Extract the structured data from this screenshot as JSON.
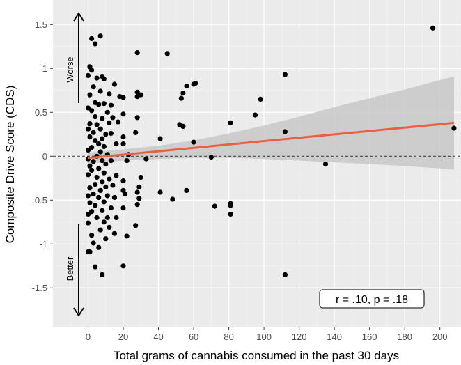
{
  "chart_data": {
    "type": "scatter",
    "title": "",
    "xlabel": "Total grams of cannabis consumed in the past 30 days",
    "ylabel": "Composite Drive Score (CDS)",
    "xlim": [
      -20,
      212
    ],
    "ylim": [
      -1.95,
      1.78
    ],
    "x_ticks": [
      0,
      20,
      40,
      60,
      80,
      100,
      120,
      140,
      160,
      180,
      200
    ],
    "x_tick_labels": [
      "0",
      "20",
      "40",
      "60",
      "80",
      "100",
      "120",
      "140",
      "160",
      "180",
      "200"
    ],
    "y_ticks": [
      -1.5,
      -1,
      -0.5,
      0,
      0.5,
      1,
      1.5
    ],
    "y_tick_labels": [
      "-1.5",
      "-1",
      "-0.5",
      "0",
      "0.5",
      "1",
      "1.5"
    ],
    "grid": true,
    "background_color": "#ebebeb",
    "point_color": "#000000",
    "fit_line_color": "#e8603f",
    "ribbon_color": "#c8c8c8",
    "reference_line_y": 0,
    "annotations": {
      "worse_label": "Worse",
      "better_label": "Better",
      "stat_label": "r = .10, p = .18"
    },
    "fit_line": {
      "x": [
        0,
        208
      ],
      "y": [
        -0.02,
        0.38
      ]
    },
    "ribbon": {
      "x": [
        0,
        20,
        40,
        60,
        80,
        100,
        120,
        140,
        160,
        180,
        208
      ],
      "lower": [
        -0.08,
        -0.05,
        -0.03,
        -0.02,
        -0.02,
        -0.03,
        -0.05,
        -0.07,
        -0.09,
        -0.11,
        -0.15
      ],
      "upper": [
        0.04,
        0.08,
        0.12,
        0.18,
        0.26,
        0.35,
        0.45,
        0.56,
        0.66,
        0.76,
        0.91
      ]
    },
    "points": [
      {
        "x": 196,
        "y": 1.46
      },
      {
        "x": 208,
        "y": 0.32
      },
      {
        "x": 112,
        "y": 0.93
      },
      {
        "x": 112,
        "y": 0.28
      },
      {
        "x": 112,
        "y": -1.35
      },
      {
        "x": 135,
        "y": -0.09
      },
      {
        "x": 98,
        "y": 0.65
      },
      {
        "x": 95,
        "y": 0.47
      },
      {
        "x": 81,
        "y": 0.38
      },
      {
        "x": 81,
        "y": -0.54
      },
      {
        "x": 81,
        "y": -0.56
      },
      {
        "x": 81,
        "y": -0.66
      },
      {
        "x": 72,
        "y": -0.57
      },
      {
        "x": 70,
        "y": -0.01
      },
      {
        "x": 61,
        "y": 0.83
      },
      {
        "x": 60,
        "y": 0.82
      },
      {
        "x": 60,
        "y": 0.16
      },
      {
        "x": 56,
        "y": 0.8
      },
      {
        "x": 54,
        "y": 0.72
      },
      {
        "x": 53,
        "y": 0.66
      },
      {
        "x": 52,
        "y": 0.36
      },
      {
        "x": 54,
        "y": 0.34
      },
      {
        "x": 56,
        "y": -0.39
      },
      {
        "x": 48,
        "y": -0.49
      },
      {
        "x": 45,
        "y": 1.17
      },
      {
        "x": 41,
        "y": 0.2
      },
      {
        "x": 41,
        "y": -0.41
      },
      {
        "x": 33,
        "y": -0.03
      },
      {
        "x": 30,
        "y": 0.7
      },
      {
        "x": 28,
        "y": 1.18
      },
      {
        "x": 28,
        "y": 0.73
      },
      {
        "x": 28,
        "y": 0.68
      },
      {
        "x": 28,
        "y": 0.44
      },
      {
        "x": 27,
        "y": 0.27
      },
      {
        "x": 28,
        "y": -0.41
      },
      {
        "x": 28,
        "y": -0.55
      },
      {
        "x": 29,
        "y": -0.48
      },
      {
        "x": 30,
        "y": -0.24
      },
      {
        "x": 29,
        "y": -0.35
      },
      {
        "x": 27,
        "y": -0.79
      },
      {
        "x": 23,
        "y": 0.02
      },
      {
        "x": 22,
        "y": -0.05
      },
      {
        "x": 22,
        "y": -0.91
      },
      {
        "x": 21,
        "y": -0.43
      },
      {
        "x": 20,
        "y": 0.67
      },
      {
        "x": 20,
        "y": 0.48
      },
      {
        "x": 20,
        "y": 0.22
      },
      {
        "x": 20,
        "y": 0.14
      },
      {
        "x": 20,
        "y": -0.28
      },
      {
        "x": 20,
        "y": -0.39
      },
      {
        "x": 20,
        "y": -0.59
      },
      {
        "x": 20,
        "y": -1.25
      },
      {
        "x": 18,
        "y": 0.68
      },
      {
        "x": 17,
        "y": 0.39
      },
      {
        "x": 16,
        "y": 0.14
      },
      {
        "x": 16,
        "y": -0.22
      },
      {
        "x": 16,
        "y": -0.7
      },
      {
        "x": 15,
        "y": 0.82
      },
      {
        "x": 15,
        "y": -0.47
      },
      {
        "x": 15,
        "y": -0.88
      },
      {
        "x": 14,
        "y": 0.44
      },
      {
        "x": 14,
        "y": -0.33
      },
      {
        "x": 13,
        "y": 0.58
      },
      {
        "x": 13,
        "y": 0.26
      },
      {
        "x": 13,
        "y": -0.05
      },
      {
        "x": 13,
        "y": -0.59
      },
      {
        "x": 12,
        "y": 0.71
      },
      {
        "x": 12,
        "y": 0.38
      },
      {
        "x": 12,
        "y": -0.26
      },
      {
        "x": 12,
        "y": -0.81
      },
      {
        "x": 11,
        "y": 0.5
      },
      {
        "x": 11,
        "y": 0.02
      },
      {
        "x": 11,
        "y": -0.45
      },
      {
        "x": 11,
        "y": -0.7
      },
      {
        "x": 10,
        "y": 0.25
      },
      {
        "x": 10,
        "y": -0.09
      },
      {
        "x": 10,
        "y": -0.35
      },
      {
        "x": 10,
        "y": -0.94
      },
      {
        "x": 9,
        "y": 0.88
      },
      {
        "x": 9,
        "y": 0.6
      },
      {
        "x": 9,
        "y": 0.11
      },
      {
        "x": 9,
        "y": -0.19
      },
      {
        "x": 9,
        "y": -0.52
      },
      {
        "x": 9,
        "y": -0.75
      },
      {
        "x": 8,
        "y": 0.91
      },
      {
        "x": 8,
        "y": 0.43
      },
      {
        "x": 8,
        "y": 0.2
      },
      {
        "x": 8,
        "y": -0.05
      },
      {
        "x": 8,
        "y": -0.29
      },
      {
        "x": 8,
        "y": -0.62
      },
      {
        "x": 8,
        "y": -1.35
      },
      {
        "x": 7,
        "y": 1.37
      },
      {
        "x": 7,
        "y": 0.74
      },
      {
        "x": 7,
        "y": 0.31
      },
      {
        "x": 7,
        "y": 0.05
      },
      {
        "x": 7,
        "y": -0.39
      },
      {
        "x": 7,
        "y": -0.84
      },
      {
        "x": 6,
        "y": 0.59
      },
      {
        "x": 6,
        "y": 0.14
      },
      {
        "x": 6,
        "y": -0.14
      },
      {
        "x": 6,
        "y": -0.47
      },
      {
        "x": 6,
        "y": -1.04
      },
      {
        "x": 5,
        "y": 0.89
      },
      {
        "x": 5,
        "y": 0.36
      },
      {
        "x": 5,
        "y": 0.0
      },
      {
        "x": 5,
        "y": -0.24
      },
      {
        "x": 5,
        "y": -0.7
      },
      {
        "x": 4,
        "y": 1.28
      },
      {
        "x": 4,
        "y": 0.61
      },
      {
        "x": 4,
        "y": 0.45
      },
      {
        "x": 4,
        "y": 0.18
      },
      {
        "x": 4,
        "y": -0.32
      },
      {
        "x": 4,
        "y": -0.56
      },
      {
        "x": 4,
        "y": -1.26
      },
      {
        "x": 3,
        "y": 0.79
      },
      {
        "x": 3,
        "y": 0.27
      },
      {
        "x": 3,
        "y": -0.06
      },
      {
        "x": 3,
        "y": -0.43
      },
      {
        "x": 3,
        "y": -0.99
      },
      {
        "x": 2,
        "y": 1.34
      },
      {
        "x": 2,
        "y": 0.98
      },
      {
        "x": 2,
        "y": 0.52
      },
      {
        "x": 2,
        "y": 0.1
      },
      {
        "x": 2,
        "y": -0.16
      },
      {
        "x": 2,
        "y": -0.63
      },
      {
        "x": 2,
        "y": -0.9
      },
      {
        "x": 1,
        "y": 1.02
      },
      {
        "x": 1,
        "y": 0.7
      },
      {
        "x": 1,
        "y": 0.37
      },
      {
        "x": 1,
        "y": 0.22
      },
      {
        "x": 1,
        "y": -0.11
      },
      {
        "x": 1,
        "y": -0.36
      },
      {
        "x": 1,
        "y": -0.53
      },
      {
        "x": 1,
        "y": -1.09
      },
      {
        "x": 0,
        "y": 0.92
      },
      {
        "x": 0,
        "y": 0.55
      },
      {
        "x": 0,
        "y": 0.31
      },
      {
        "x": 0,
        "y": 0.07
      },
      {
        "x": 0,
        "y": -0.03
      },
      {
        "x": 0,
        "y": -0.21
      },
      {
        "x": 0,
        "y": -0.45
      },
      {
        "x": 0,
        "y": -0.66
      },
      {
        "x": 0,
        "y": -0.76
      },
      {
        "x": 0,
        "y": -1.09
      }
    ]
  }
}
